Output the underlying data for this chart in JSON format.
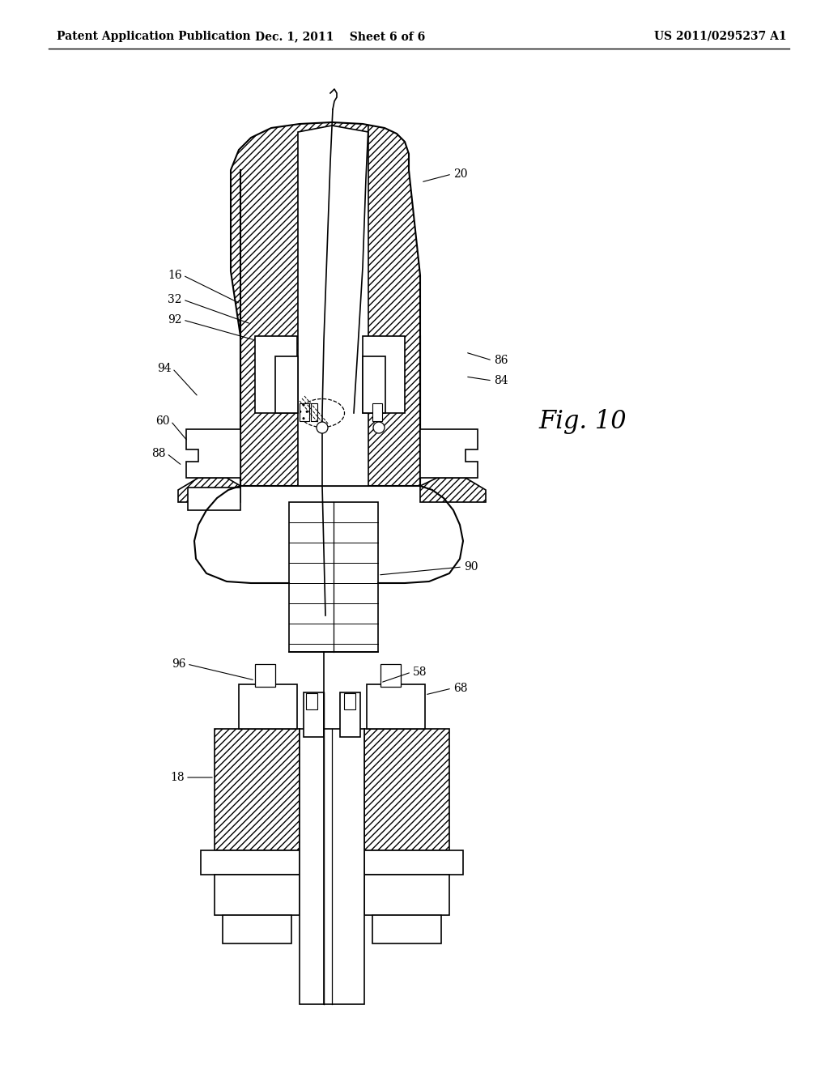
{
  "title_left": "Patent Application Publication",
  "title_mid": "Dec. 1, 2011    Sheet 6 of 6",
  "title_right": "US 2011/0295237 A1",
  "fig_label": "Fig. 10",
  "background_color": "#ffffff",
  "line_color": "#000000",
  "header_fontsize": 10,
  "label_fontsize": 10,
  "figlabel_fontsize": 22
}
